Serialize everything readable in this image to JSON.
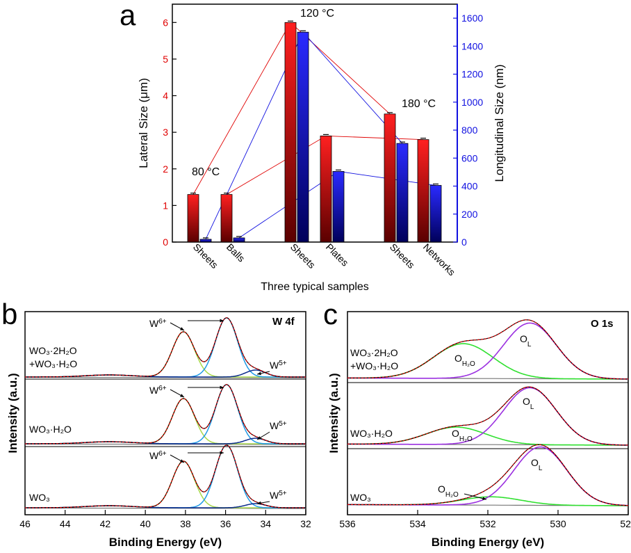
{
  "panel_labels": [
    "a",
    "b",
    "c"
  ],
  "chart_data": [
    {
      "type": "bar",
      "panel": "a",
      "xlabel": "Three typical samples",
      "ylabel_left": "Lateral Size (μm)",
      "ylabel_right": "Longitudinal Size (nm)",
      "ylim_left": [
        0,
        6.5
      ],
      "ylim_right": [
        0,
        1700
      ],
      "yticks_left": [
        "0",
        "1",
        "2",
        "3",
        "4",
        "5",
        "6"
      ],
      "yticks_right": [
        "0",
        "200",
        "400",
        "600",
        "800",
        "1000",
        "1200",
        "1400",
        "1600"
      ],
      "categories": [
        "Sheets",
        "Balls",
        "Sheets",
        "Plates",
        "Sheets",
        "Networks"
      ],
      "groups": [
        "80 °C",
        "120 °C",
        "180 °C"
      ],
      "series": [
        {
          "name": "Lateral Size",
          "axis": "left",
          "color": "#e00000",
          "values": [
            1.3,
            1.3,
            6.0,
            2.9,
            3.5,
            2.8
          ]
        },
        {
          "name": "Longitudinal Size",
          "axis": "right",
          "color": "#1010e0",
          "values": [
            20,
            30,
            1500,
            505,
            705,
            405
          ]
        }
      ]
    },
    {
      "type": "line",
      "panel": "b",
      "title": "W 4f",
      "xlabel": "Binding Energy (eV)",
      "ylabel": "Intensity (a.u.)",
      "xlim": [
        46,
        32
      ],
      "xticks": [
        "46",
        "44",
        "42",
        "40",
        "38",
        "36",
        "34",
        "32"
      ],
      "traces": [
        {
          "name": "WO3·2H2O +WO3·H2O",
          "line1": "WO₃·2H₂O",
          "line2": "+WO₃·H₂O"
        },
        {
          "name": "WO3·H2O",
          "line1": "WO₃·H₂O"
        },
        {
          "name": "WO3",
          "line1": "WO₃"
        }
      ],
      "peaks": [
        {
          "name": "W6+ 4f7/2",
          "center": 35.9,
          "color": "#1e9ae6"
        },
        {
          "name": "W6+ 4f5/2",
          "center": 38.1,
          "color": "#a8d84a"
        },
        {
          "name": "W5+",
          "center": 34.5,
          "color": "#0a2a8a"
        }
      ],
      "annotations": {
        "w6": "W",
        "w6_sup": "6+",
        "w5": "W",
        "w5_sup": "5+"
      }
    },
    {
      "type": "line",
      "panel": "c",
      "title": "O 1s",
      "xlabel": "Binding Energy (eV)",
      "ylabel": "Intensity (a.u.)",
      "xlim": [
        536,
        528
      ],
      "xticks": [
        "536",
        "534",
        "532",
        "530",
        "528"
      ],
      "traces": [
        {
          "name": "WO3·2H2O +WO3·H2O",
          "line1": "WO₃·2H₂O",
          "line2": "+WO₃·H₂O"
        },
        {
          "name": "WO3·H2O",
          "line1": "WO₃·H₂O"
        },
        {
          "name": "WO3",
          "line1": "WO₃"
        }
      ],
      "peaks": [
        {
          "name": "OL",
          "center": 530.8,
          "color": "#9b30e0"
        },
        {
          "name": "OH2O",
          "center": 532.7,
          "color": "#30e030"
        }
      ],
      "annotations": {
        "ol": "O",
        "ol_sub": "L",
        "oh": "O",
        "oh_sub": "H₂O"
      }
    }
  ]
}
